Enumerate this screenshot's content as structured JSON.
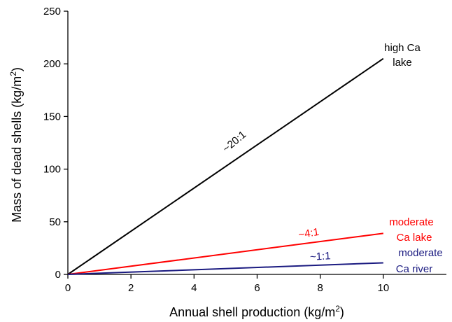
{
  "chart_data": {
    "type": "line",
    "title": "",
    "xlabel": "Annual shell production (kg/m",
    "xlabel_sup": "2",
    "xlabel_close": ")",
    "ylabel": "Mass of dead shells (kg/m",
    "ylabel_sup": "2",
    "ylabel_close": ")",
    "xlim": [
      0,
      12
    ],
    "ylim": [
      0,
      250
    ],
    "x_ticks": [
      "0",
      "2",
      "4",
      "6",
      "8",
      "10"
    ],
    "y_ticks": [
      "0",
      "50",
      "100",
      "150",
      "200",
      "250"
    ],
    "x_tick_values": [
      0,
      2,
      4,
      6,
      8,
      10
    ],
    "y_tick_values": [
      0,
      50,
      100,
      150,
      200,
      250
    ],
    "grid": false,
    "legend": "none",
    "series": [
      {
        "key": "high",
        "label_lines": [
          "high Ca",
          "lake"
        ],
        "ratio": "~20:1",
        "color": "#000000",
        "x": [
          0,
          10
        ],
        "y": [
          0,
          205
        ]
      },
      {
        "key": "moderate_lake",
        "label_lines": [
          "moderate",
          "Ca lake"
        ],
        "ratio": "~4:1",
        "color": "#ff0000",
        "x": [
          0,
          10
        ],
        "y": [
          0,
          39
        ]
      },
      {
        "key": "moderate_river",
        "label_lines": [
          "moderate",
          "Ca river"
        ],
        "ratio": "~1:1",
        "color": "#1a1a80",
        "x": [
          0,
          10
        ],
        "y": [
          0,
          11
        ]
      }
    ]
  }
}
